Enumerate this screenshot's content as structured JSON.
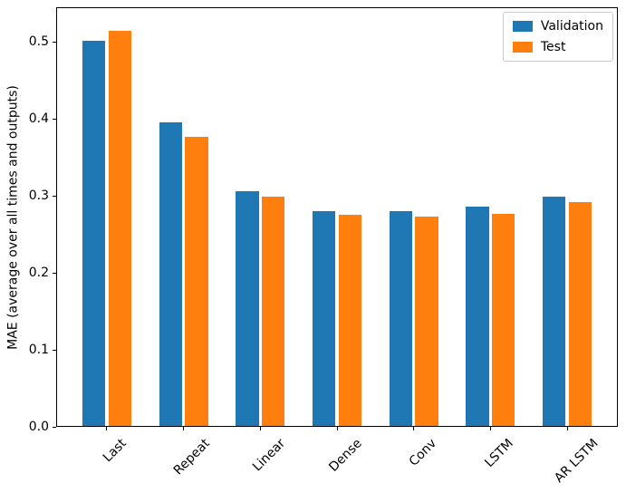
{
  "chart_data": {
    "type": "bar",
    "title": "",
    "xlabel": "",
    "ylabel": "MAE (average over all times and outputs)",
    "categories": [
      "Last",
      "Repeat",
      "Linear",
      "Dense",
      "Conv",
      "LSTM",
      "AR LSTM"
    ],
    "series": [
      {
        "name": "Validation",
        "color": "#1f77b4",
        "values": [
          0.503,
          0.396,
          0.307,
          0.281,
          0.281,
          0.286,
          0.3
        ]
      },
      {
        "name": "Test",
        "color": "#ff7f0e",
        "values": [
          0.516,
          0.378,
          0.3,
          0.276,
          0.274,
          0.277,
          0.292
        ]
      }
    ],
    "ylim": [
      0,
      0.5456
    ],
    "xlim": [
      -0.652,
      6.652
    ],
    "yticks": [
      0.0,
      0.1,
      0.2,
      0.3,
      0.4,
      0.5
    ],
    "ytick_labels": [
      "0.0",
      "0.1",
      "0.2",
      "0.3",
      "0.4",
      "0.5"
    ],
    "xtick_rotation_deg": 45,
    "bar_width": 0.3,
    "bar_offset": 0.17,
    "grid": false,
    "legend_position": "upper right",
    "colors": {
      "validation": "#1f77b4",
      "test": "#ff7f0e",
      "spine": "#000000",
      "legend_border": "#cccccc",
      "background": "#ffffff"
    }
  }
}
